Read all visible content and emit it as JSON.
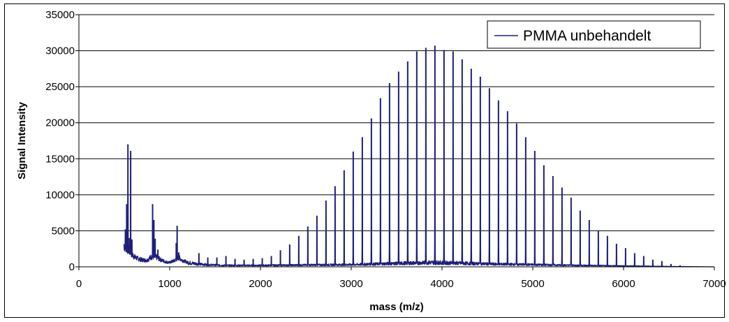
{
  "chart_data": {
    "type": "line",
    "title": "",
    "xlabel": "mass (m/z)",
    "ylabel": "Signal Intensity",
    "xlim": [
      0,
      7000
    ],
    "ylim": [
      0,
      35000
    ],
    "x_ticks": [
      "0",
      "1000",
      "2000",
      "3000",
      "4000",
      "5000",
      "6000",
      "7000"
    ],
    "y_ticks": [
      "0",
      "5000",
      "10000",
      "15000",
      "20000",
      "25000",
      "30000",
      "35000"
    ],
    "grid": "horizontal",
    "legend_position": "top-right",
    "series": [
      {
        "name": "PMMA unbehandelt",
        "color": "#1F1F7A",
        "peaks": [
          [
            512,
            5200
          ],
          [
            526,
            8700
          ],
          [
            540,
            17000
          ],
          [
            556,
            4000
          ],
          [
            570,
            16100
          ],
          [
            584,
            3800
          ],
          [
            812,
            8700
          ],
          [
            826,
            6500
          ],
          [
            840,
            3900
          ],
          [
            870,
            2400
          ],
          [
            1072,
            3300
          ],
          [
            1082,
            5700
          ],
          [
            1100,
            2000
          ],
          [
            1322,
            1900
          ],
          [
            1420,
            1300
          ],
          [
            1520,
            1300
          ],
          [
            1620,
            1500
          ],
          [
            1720,
            1100
          ],
          [
            1820,
            1000
          ],
          [
            1920,
            1100
          ],
          [
            2020,
            1200
          ],
          [
            2120,
            1500
          ],
          [
            2220,
            2300
          ],
          [
            2322,
            3100
          ],
          [
            2422,
            4300
          ],
          [
            2522,
            5600
          ],
          [
            2622,
            7100
          ],
          [
            2722,
            9200
          ],
          [
            2822,
            11200
          ],
          [
            2922,
            13400
          ],
          [
            3022,
            16000
          ],
          [
            3122,
            18000
          ],
          [
            3222,
            20600
          ],
          [
            3322,
            23400
          ],
          [
            3422,
            25500
          ],
          [
            3522,
            27100
          ],
          [
            3622,
            28500
          ],
          [
            3722,
            29900
          ],
          [
            3822,
            30400
          ],
          [
            3922,
            30700
          ],
          [
            4022,
            30100
          ],
          [
            4122,
            29900
          ],
          [
            4222,
            28800
          ],
          [
            4322,
            27500
          ],
          [
            4422,
            26400
          ],
          [
            4522,
            24800
          ],
          [
            4622,
            23100
          ],
          [
            4722,
            21600
          ],
          [
            4822,
            19900
          ],
          [
            4922,
            18000
          ],
          [
            5022,
            16100
          ],
          [
            5122,
            14100
          ],
          [
            5222,
            12600
          ],
          [
            5322,
            11000
          ],
          [
            5422,
            9600
          ],
          [
            5522,
            7800
          ],
          [
            5622,
            6500
          ],
          [
            5722,
            5000
          ],
          [
            5822,
            4300
          ],
          [
            5922,
            3200
          ],
          [
            6022,
            2600
          ],
          [
            6122,
            1900
          ],
          [
            6222,
            1500
          ],
          [
            6322,
            1000
          ],
          [
            6422,
            800
          ],
          [
            6522,
            400
          ],
          [
            6622,
            200
          ]
        ],
        "satellite_peaks": [
          [
            3922,
            5200
          ],
          [
            4022,
            4400
          ],
          [
            4122,
            3800
          ],
          [
            3822,
            3600
          ],
          [
            3722,
            2700
          ],
          [
            4222,
            2700
          ],
          [
            4322,
            2200
          ],
          [
            4422,
            1900
          ],
          [
            4522,
            1500
          ],
          [
            4622,
            1400
          ],
          [
            4722,
            1100
          ],
          [
            4822,
            900
          ],
          [
            4922,
            800
          ],
          [
            3622,
            2200
          ],
          [
            3522,
            1700
          ],
          [
            3422,
            1300
          ],
          [
            3322,
            1100
          ],
          [
            3222,
            1000
          ],
          [
            3122,
            800
          ],
          [
            3022,
            700
          ]
        ],
        "baseline": [
          [
            500,
            3000
          ],
          [
            540,
            2500
          ],
          [
            580,
            1800
          ],
          [
            620,
            1300
          ],
          [
            680,
            1000
          ],
          [
            750,
            900
          ],
          [
            800,
            1400
          ],
          [
            860,
            1300
          ],
          [
            900,
            1000
          ],
          [
            950,
            700
          ],
          [
            1000,
            600
          ],
          [
            1060,
            900
          ],
          [
            1100,
            1300
          ],
          [
            1140,
            900
          ],
          [
            1200,
            600
          ],
          [
            1300,
            400
          ],
          [
            1400,
            300
          ],
          [
            1600,
            200
          ],
          [
            2000,
            200
          ],
          [
            3000,
            300
          ],
          [
            3900,
            600
          ],
          [
            4500,
            400
          ],
          [
            5500,
            200
          ],
          [
            6500,
            50
          ],
          [
            7000,
            0
          ]
        ]
      }
    ]
  }
}
